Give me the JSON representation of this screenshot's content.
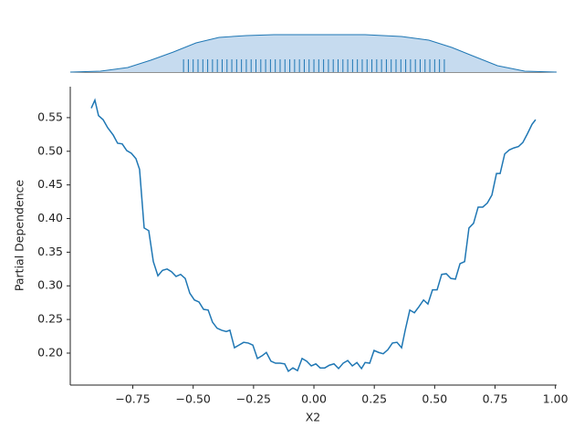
{
  "chart_data": {
    "type": "line",
    "xlabel": "X2",
    "ylabel": "Partial Dependence",
    "color": "#1f77b4",
    "xlim": [
      -1.009,
      1.005
    ],
    "ylim": [
      0.1525,
      0.596
    ],
    "xticks": [
      {
        "value": -0.75,
        "label": "−0.75"
      },
      {
        "value": -0.5,
        "label": "−0.50"
      },
      {
        "value": -0.25,
        "label": "−0.25"
      },
      {
        "value": 0,
        "label": "0.00"
      },
      {
        "value": 0.25,
        "label": "0.25"
      },
      {
        "value": 0.5,
        "label": "0.50"
      },
      {
        "value": 0.75,
        "label": "0.75"
      },
      {
        "value": 1,
        "label": "1.00"
      }
    ],
    "yticks": [
      {
        "value": 0.2,
        "label": "0.20"
      },
      0.25,
      {
        "value": 0.3,
        "label": "0.30"
      },
      0.35,
      {
        "value": 0.4,
        "label": "0.40"
      },
      0.45,
      {
        "value": 0.5,
        "label": "0.50"
      },
      0.55
    ],
    "x": [
      -0.922,
      -0.907,
      -0.892,
      -0.873,
      -0.854,
      -0.831,
      -0.813,
      -0.794,
      -0.775,
      -0.756,
      -0.737,
      -0.722,
      -0.703,
      -0.684,
      -0.665,
      -0.646,
      -0.627,
      -0.608,
      -0.59,
      -0.571,
      -0.552,
      -0.533,
      -0.514,
      -0.495,
      -0.476,
      -0.457,
      -0.438,
      -0.42,
      -0.401,
      -0.382,
      -0.363,
      -0.348,
      -0.329,
      -0.31,
      -0.291,
      -0.272,
      -0.253,
      -0.234,
      -0.215,
      -0.197,
      -0.178,
      -0.159,
      -0.14,
      -0.121,
      -0.106,
      -0.087,
      -0.068,
      -0.049,
      -0.03,
      -0.011,
      0.008,
      0.026,
      0.045,
      0.064,
      0.083,
      0.102,
      0.121,
      0.14,
      0.159,
      0.178,
      0.197,
      0.212,
      0.231,
      0.249,
      0.268,
      0.287,
      0.306,
      0.325,
      0.344,
      0.363,
      0.378,
      0.397,
      0.416,
      0.435,
      0.454,
      0.472,
      0.491,
      0.51,
      0.529,
      0.548,
      0.567,
      0.586,
      0.605,
      0.624,
      0.642,
      0.661,
      0.68,
      0.699,
      0.718,
      0.737,
      0.756,
      0.771,
      0.79,
      0.809,
      0.828,
      0.847,
      0.865,
      0.884,
      0.903,
      0.918
    ],
    "values": [
      0.564,
      0.576,
      0.553,
      0.547,
      0.535,
      0.524,
      0.512,
      0.511,
      0.501,
      0.497,
      0.489,
      0.473,
      0.386,
      0.382,
      0.336,
      0.315,
      0.323,
      0.325,
      0.321,
      0.314,
      0.317,
      0.311,
      0.289,
      0.279,
      0.276,
      0.265,
      0.264,
      0.246,
      0.237,
      0.234,
      0.232,
      0.234,
      0.208,
      0.212,
      0.216,
      0.215,
      0.212,
      0.192,
      0.196,
      0.201,
      0.188,
      0.185,
      0.185,
      0.184,
      0.173,
      0.178,
      0.174,
      0.192,
      0.188,
      0.181,
      0.184,
      0.178,
      0.178,
      0.182,
      0.184,
      0.177,
      0.185,
      0.189,
      0.181,
      0.186,
      0.177,
      0.186,
      0.185,
      0.204,
      0.201,
      0.199,
      0.205,
      0.215,
      0.216,
      0.208,
      0.234,
      0.264,
      0.26,
      0.269,
      0.279,
      0.273,
      0.294,
      0.294,
      0.317,
      0.318,
      0.311,
      0.31,
      0.333,
      0.336,
      0.386,
      0.393,
      0.417,
      0.417,
      0.423,
      0.435,
      0.467,
      0.467,
      0.496,
      0.502,
      0.505,
      0.507,
      0.513,
      0.526,
      0.54,
      0.547
    ],
    "marginal": {
      "color": "#1f77b4",
      "fill": "#c6dbef",
      "ylim": [
        0,
        1
      ],
      "x": [
        -1.009,
        -0.884,
        -0.771,
        -0.676,
        -0.582,
        -0.488,
        -0.393,
        -0.28,
        -0.166,
        0.212,
        0.363,
        0.476,
        0.571,
        0.665,
        0.76,
        0.873,
        1.005
      ],
      "values": [
        0,
        0.024,
        0.122,
        0.317,
        0.537,
        0.78,
        0.927,
        0.976,
        1,
        1,
        0.951,
        0.854,
        0.659,
        0.415,
        0.171,
        0.024,
        0
      ],
      "rug": [
        -0.54,
        -0.52,
        -0.5,
        -0.48,
        -0.46,
        -0.44,
        -0.42,
        -0.4,
        -0.38,
        -0.36,
        -0.34,
        -0.32,
        -0.3,
        -0.28,
        -0.26,
        -0.24,
        -0.22,
        -0.2,
        -0.18,
        -0.16,
        -0.14,
        -0.12,
        -0.1,
        -0.08,
        -0.06,
        -0.04,
        -0.02,
        0,
        0.02,
        0.04,
        0.06,
        0.08,
        0.1,
        0.12,
        0.14,
        0.16,
        0.18,
        0.2,
        0.22,
        0.24,
        0.26,
        0.28,
        0.3,
        0.32,
        0.34,
        0.36,
        0.38,
        0.4,
        0.42,
        0.44,
        0.46,
        0.48,
        0.5,
        0.52,
        0.54
      ]
    }
  }
}
